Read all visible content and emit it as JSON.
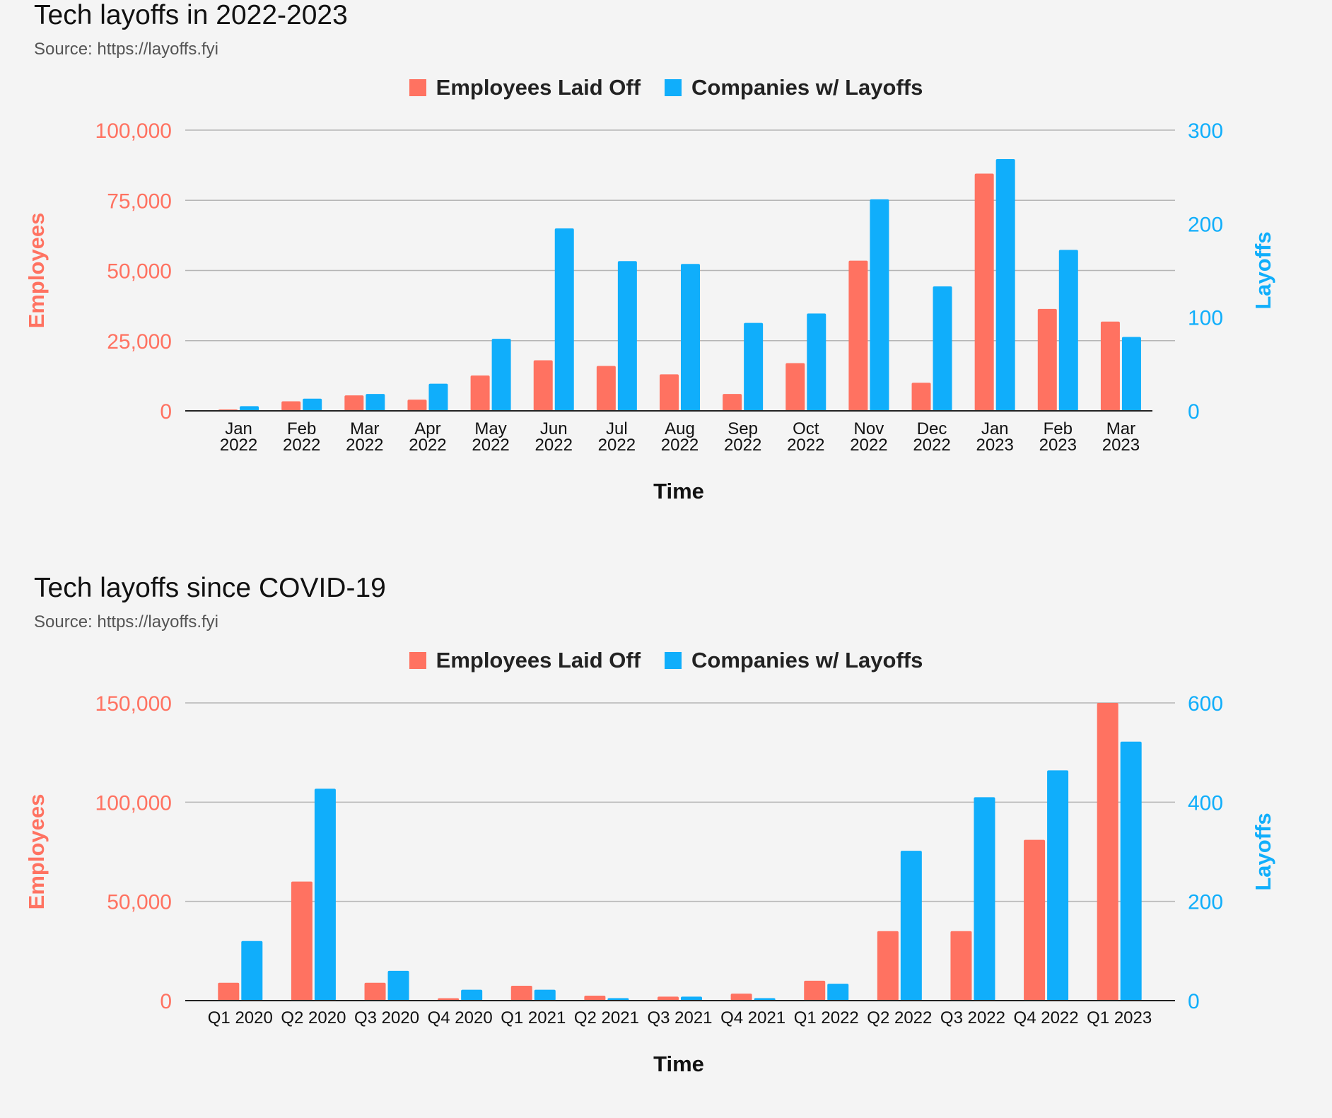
{
  "colors": {
    "employees": "#ff7261",
    "companies": "#10aefb",
    "grid": "#b5b5b5",
    "axis": "#222222",
    "background": "#f4f4f4"
  },
  "chart_data": [
    {
      "type": "bar",
      "title": "Tech layoffs in 2022-2023",
      "subtitle": "Source: https://layoffs.fyi",
      "xlabel": "Time",
      "ylabel": "Employees",
      "y2label": "Layoffs",
      "categories": [
        [
          "Jan",
          "2022"
        ],
        [
          "Feb",
          "2022"
        ],
        [
          "Mar",
          "2022"
        ],
        [
          "Apr",
          "2022"
        ],
        [
          "May",
          "2022"
        ],
        [
          "Jun",
          "2022"
        ],
        [
          "Jul",
          "2022"
        ],
        [
          "Aug",
          "2022"
        ],
        [
          "Sep",
          "2022"
        ],
        [
          "Oct",
          "2022"
        ],
        [
          "Nov",
          "2022"
        ],
        [
          "Dec",
          "2022"
        ],
        [
          "Jan",
          "2023"
        ],
        [
          "Feb",
          "2023"
        ],
        [
          "Mar",
          "2023"
        ]
      ],
      "series": [
        {
          "name": "Employees Laid Off",
          "axis": "left",
          "values": [
            500,
            3400,
            5500,
            4000,
            12600,
            18000,
            16000,
            13000,
            6000,
            17000,
            53500,
            10000,
            84500,
            36300,
            31800
          ]
        },
        {
          "name": "Companies w/ Layoffs",
          "axis": "right",
          "values": [
            5,
            13,
            18,
            29,
            77,
            195,
            160,
            157,
            94,
            104,
            226,
            133,
            269,
            172,
            79
          ]
        }
      ],
      "ylim": [
        0,
        100000
      ],
      "y2lim": [
        0,
        300
      ],
      "yticks": [
        "0",
        "25,000",
        "50,000",
        "75,000",
        "100,000"
      ],
      "ytick_values": [
        0,
        25000,
        50000,
        75000,
        100000
      ],
      "y2ticks": [
        "0",
        "100",
        "200",
        "300"
      ],
      "y2tick_values": [
        0,
        100,
        200,
        300
      ],
      "grid": true,
      "legend": "top-center"
    },
    {
      "type": "bar",
      "title": "Tech layoffs since COVID-19",
      "subtitle": "Source: https://layoffs.fyi",
      "xlabel": "Time",
      "ylabel": "Employees",
      "y2label": "Layoffs",
      "categories": [
        [
          "Q1 2020"
        ],
        [
          "Q2 2020"
        ],
        [
          "Q3 2020"
        ],
        [
          "Q4 2020"
        ],
        [
          "Q1 2021"
        ],
        [
          "Q2 2021"
        ],
        [
          "Q3 2021"
        ],
        [
          "Q4 2021"
        ],
        [
          "Q1 2022"
        ],
        [
          "Q2 2022"
        ],
        [
          "Q3 2022"
        ],
        [
          "Q4 2022"
        ],
        [
          "Q1 2023"
        ]
      ],
      "series": [
        {
          "name": "Employees Laid Off",
          "axis": "left",
          "values": [
            9000,
            60000,
            9000,
            1200,
            7500,
            2500,
            2000,
            3500,
            10000,
            35000,
            35000,
            81000,
            150000
          ]
        },
        {
          "name": "Companies w/ Layoffs",
          "axis": "right",
          "values": [
            120,
            427,
            60,
            22,
            22,
            5,
            8,
            5,
            34,
            302,
            410,
            464,
            522
          ]
        }
      ],
      "ylim": [
        0,
        150000
      ],
      "y2lim": [
        0,
        600
      ],
      "yticks": [
        "0",
        "50,000",
        "100,000",
        "150,000"
      ],
      "ytick_values": [
        0,
        50000,
        100000,
        150000
      ],
      "y2ticks": [
        "0",
        "200",
        "400",
        "600"
      ],
      "y2tick_values": [
        0,
        200,
        400,
        600
      ],
      "grid": true,
      "legend": "top-center"
    }
  ]
}
